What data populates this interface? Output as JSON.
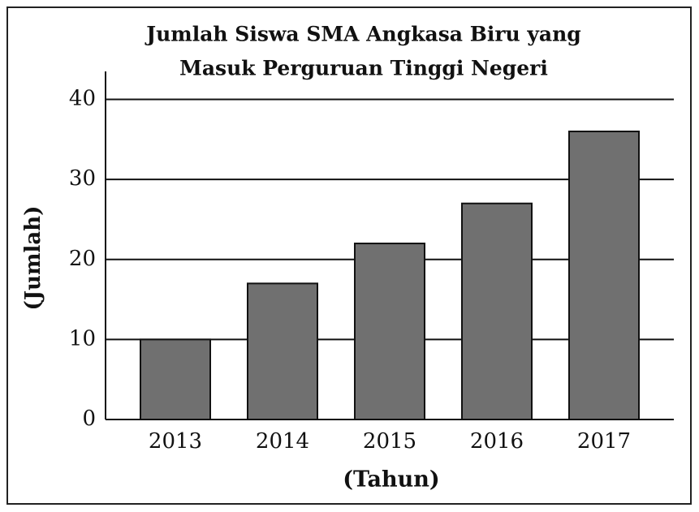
{
  "chart_data": {
    "type": "bar",
    "title": [
      "Jumlah Siswa SMA Angkasa Biru yang",
      "Masuk Perguruan Tinggi Negeri"
    ],
    "x_label": "(Tahun)",
    "y_label": "(Jumlah)",
    "categories": [
      "2013",
      "2014",
      "2015",
      "2016",
      "2017"
    ],
    "values": [
      10,
      17,
      22,
      27,
      36
    ],
    "color": "#707070",
    "ylim": [
      0,
      43.5
    ],
    "yticks": [
      0,
      10,
      20,
      30,
      40
    ],
    "grid": true
  }
}
